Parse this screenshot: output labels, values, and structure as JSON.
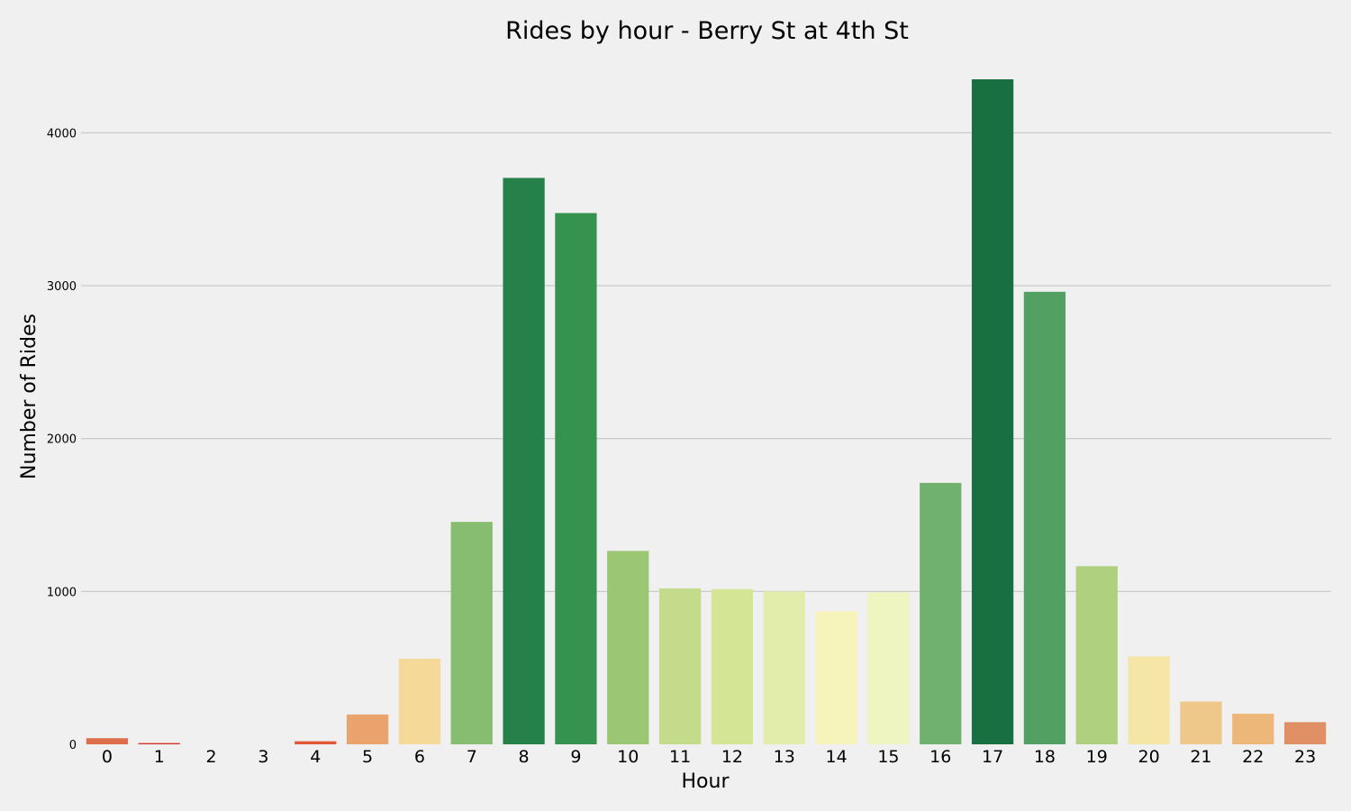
{
  "chart_data": {
    "type": "bar",
    "title": "Rides by hour - Berry St at 4th St",
    "xlabel": "Hour",
    "ylabel": "Number of Rides",
    "categories": [
      "0",
      "1",
      "2",
      "3",
      "4",
      "5",
      "6",
      "7",
      "8",
      "9",
      "10",
      "11",
      "12",
      "13",
      "14",
      "15",
      "16",
      "17",
      "18",
      "19",
      "20",
      "21",
      "22",
      "23"
    ],
    "values": [
      40,
      8,
      0,
      0,
      20,
      195,
      560,
      1455,
      3705,
      3475,
      1265,
      1020,
      1015,
      1000,
      870,
      995,
      1710,
      4350,
      2960,
      1165,
      575,
      280,
      200,
      145
    ],
    "colors": [
      "#de6e4b",
      "#d73027",
      "#d73027",
      "#d73027",
      "#e05a3a",
      "#eba36e",
      "#f4d998",
      "#86bd70",
      "#258049",
      "#36924f",
      "#9bc774",
      "#c3db8a",
      "#d4e596",
      "#e3edab",
      "#f6f3bb",
      "#eef5c1",
      "#70b16d",
      "#176f42",
      "#52a062",
      "#aed07f",
      "#f5e5a7",
      "#eec88a",
      "#edb779",
      "#e18f64"
    ],
    "yticks": [
      0,
      1000,
      2000,
      3000,
      4000
    ],
    "ylim": [
      0,
      4350
    ],
    "grid": "horizontal",
    "legend": "none"
  }
}
